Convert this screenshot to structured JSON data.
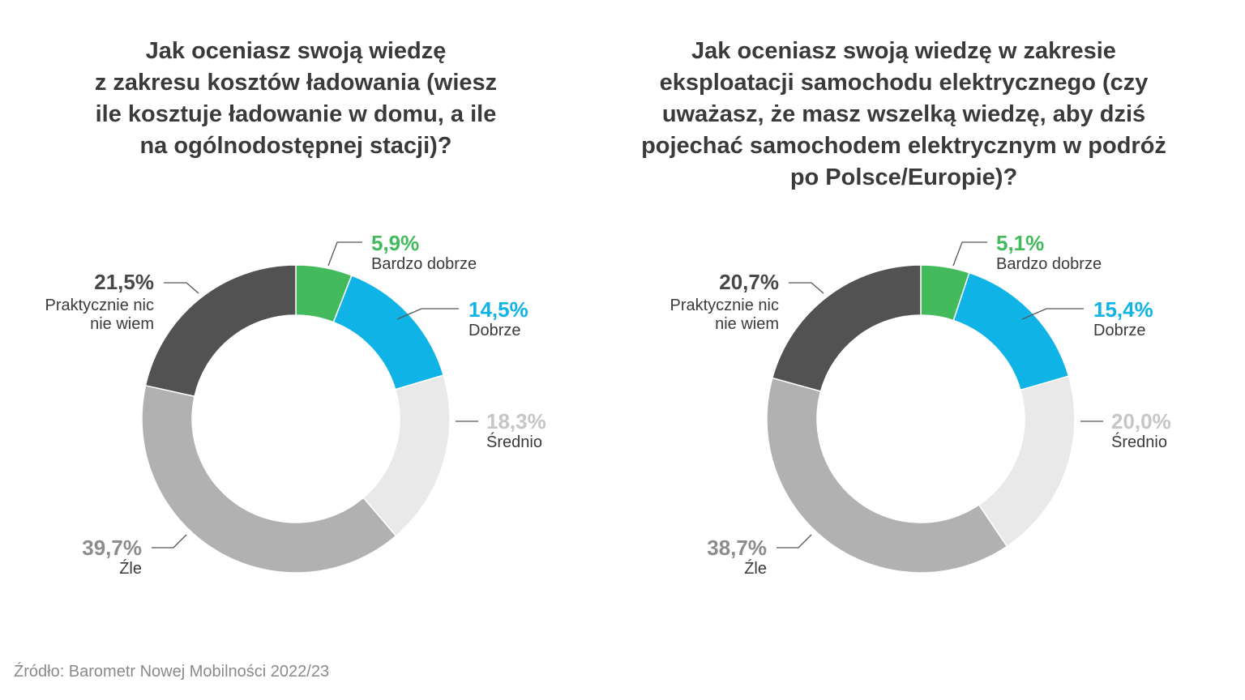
{
  "chart_data": [
    {
      "type": "pie",
      "variant": "donut",
      "title": "Jak oceniasz swoją wiedzę z zakresu kosztów ładowania (wiesz ile kosztuje ładowanie w domu, a ile na ogólnodostępnej stacji)?",
      "title_lines": [
        "Jak oceniasz swoją wiedzę",
        "z zakresu kosztów ładowania (wiesz",
        "ile kosztuje ładowanie w domu, a ile",
        "na ogólnodostępnej stacji)?"
      ],
      "slices": [
        {
          "label": "Bardzo dobrze",
          "value": 5.9,
          "text": "5,9%",
          "color": "#43bb5d",
          "label_color": "#43bb5d"
        },
        {
          "label": "Dobrze",
          "value": 14.5,
          "text": "14,5%",
          "color": "#0fb3e6",
          "label_color": "#0fb3e6"
        },
        {
          "label": "Średnio",
          "value": 18.3,
          "text": "18,3%",
          "color": "#e9e9e9",
          "label_color": "#c6c6c6"
        },
        {
          "label": "Źle",
          "value": 39.7,
          "text": "39,7%",
          "color": "#b1b1b1",
          "label_color": "#8c8c8c"
        },
        {
          "label": "Praktycznie nic nie wiem",
          "label_lines": [
            "Praktycznie nic",
            "nie wiem"
          ],
          "value": 21.5,
          "text": "21,5%",
          "color": "#525252",
          "label_color": "#474747"
        }
      ]
    },
    {
      "type": "pie",
      "variant": "donut",
      "title": "Jak oceniasz swoją wiedzę w zakresie eksploatacji samochodu elektrycznego (czy uważasz, że masz wszelką wiedzę, aby dziś pojechać samochodem elektrycznym w podróż po Polsce/Europie)?",
      "title_lines": [
        "Jak oceniasz swoją wiedzę w zakresie",
        "eksploatacji samochodu elektrycznego (czy",
        "uważasz, że masz wszelką wiedzę, aby dziś",
        "pojechać samochodem elektrycznym w podróż",
        "po Polsce/Europie)?"
      ],
      "slices": [
        {
          "label": "Bardzo dobrze",
          "value": 5.1,
          "text": "5,1%",
          "color": "#43bb5d",
          "label_color": "#43bb5d"
        },
        {
          "label": "Dobrze",
          "value": 15.4,
          "text": "15,4%",
          "color": "#0fb3e6",
          "label_color": "#0fb3e6"
        },
        {
          "label": "Średnio",
          "value": 20.0,
          "text": "20,0%",
          "color": "#e9e9e9",
          "label_color": "#c6c6c6"
        },
        {
          "label": "Źle",
          "value": 38.7,
          "text": "38,7%",
          "color": "#b1b1b1",
          "label_color": "#8c8c8c"
        },
        {
          "label": "Praktycznie nic nie wiem",
          "label_lines": [
            "Praktycznie nic",
            "nie wiem"
          ],
          "value": 20.7,
          "text": "20,7%",
          "color": "#525252",
          "label_color": "#474747"
        }
      ]
    }
  ],
  "source": "Źródło: Barometr Nowej Mobilności 2022/23"
}
